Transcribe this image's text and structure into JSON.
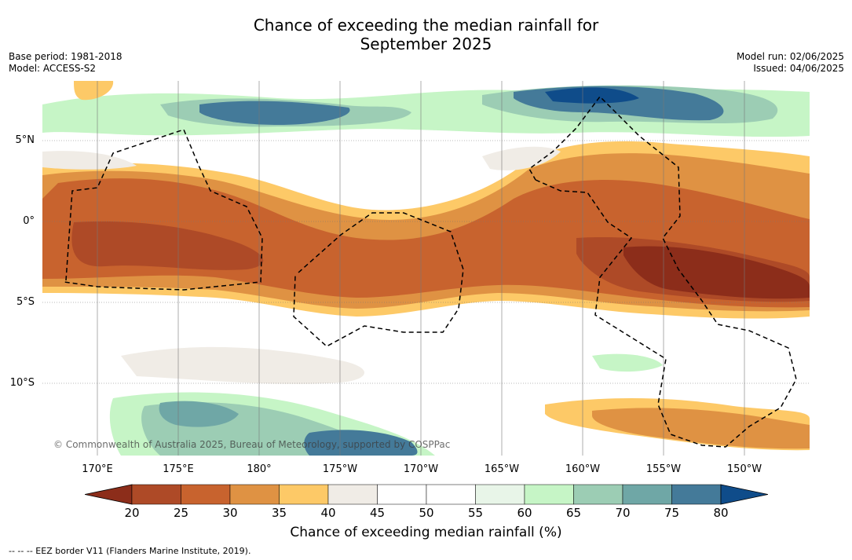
{
  "title_line1": "Chance of exceeding the median rainfall for",
  "title_line2": "September 2025",
  "meta": {
    "base_period": "Base period: 1981-2018",
    "model": "Model: ACCESS-S2",
    "model_run": "Model run: 02/06/2025",
    "issued": "Issued: 04/06/2025"
  },
  "lat_labels": [
    "5°N",
    "0°",
    "5°S",
    "10°S"
  ],
  "lon_labels": [
    "170°E",
    "175°E",
    "180°",
    "175°W",
    "170°W",
    "165°W",
    "160°W",
    "155°W",
    "150°W"
  ],
  "copyright": "© Commonwealth of Australia 2025, Bureau of Meteorology, supported by COSPPac",
  "colorbar": {
    "ticks": [
      "20",
      "25",
      "30",
      "35",
      "40",
      "45",
      "50",
      "55",
      "60",
      "65",
      "70",
      "75",
      "80"
    ],
    "colors": [
      "#8c2d1a",
      "#ae4a27",
      "#c8632e",
      "#df9243",
      "#fdc967",
      "#f0ece6",
      "#ffffff",
      "#ffffff",
      "#e8f5e8",
      "#c6f5c6",
      "#9ccdb4",
      "#6fa7a6",
      "#447a99",
      "#0f4c8a"
    ],
    "label": "Chance of exceeding median rainfall (%)"
  },
  "footnote": "--  --  -- EEZ border V11 (Flanders Marine Institute, 2019)."
}
